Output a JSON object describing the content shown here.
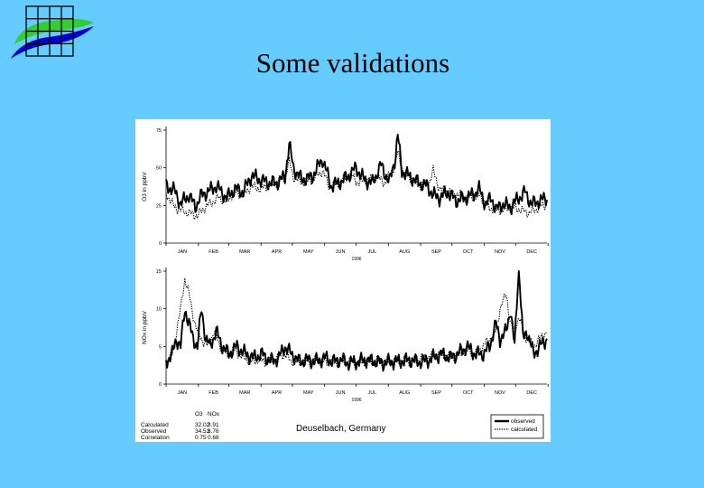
{
  "slide": {
    "title": "Some validations"
  },
  "colors": {
    "background": "#66ccff",
    "logo_green": "#33cc33",
    "logo_blue": "#0000cc",
    "grid": "#000000"
  },
  "chart_data": [
    {
      "type": "line",
      "ylabel": "O3 in ppbV",
      "xlabel": "1996",
      "ylim": [
        0,
        75
      ],
      "yticks": [
        0,
        25,
        50,
        75
      ],
      "x_ticks": [
        "JAN",
        "FEB",
        "MAR",
        "APR",
        "MAY",
        "JUN",
        "JUL",
        "AUG",
        "SEP",
        "OCT",
        "NOV",
        "DEC"
      ],
      "series": [
        {
          "name": "observed",
          "style": "solid-thick",
          "anchors": [
            [
              0,
              38
            ],
            [
              8,
              35
            ],
            [
              14,
              26
            ],
            [
              22,
              32
            ],
            [
              28,
              24
            ],
            [
              34,
              32
            ],
            [
              40,
              34
            ],
            [
              48,
              38
            ],
            [
              58,
              30
            ],
            [
              66,
              36
            ],
            [
              74,
              34
            ],
            [
              82,
              45
            ],
            [
              90,
              42
            ],
            [
              98,
              40
            ],
            [
              106,
              40
            ],
            [
              114,
              44
            ],
            [
              118,
              66
            ],
            [
              122,
              50
            ],
            [
              130,
              42
            ],
            [
              140,
              44
            ],
            [
              150,
              56
            ],
            [
              158,
              38
            ],
            [
              166,
              40
            ],
            [
              174,
              44
            ],
            [
              182,
              50
            ],
            [
              190,
              42
            ],
            [
              198,
              40
            ],
            [
              206,
              52
            ],
            [
              214,
              40
            ],
            [
              220,
              58
            ],
            [
              222,
              72
            ],
            [
              226,
              48
            ],
            [
              234,
              44
            ],
            [
              242,
              40
            ],
            [
              250,
              38
            ],
            [
              256,
              32
            ],
            [
              262,
              30
            ],
            [
              270,
              34
            ],
            [
              278,
              28
            ],
            [
              286,
              30
            ],
            [
              294,
              32
            ],
            [
              300,
              36
            ],
            [
              306,
              26
            ],
            [
              312,
              30
            ],
            [
              316,
              22
            ],
            [
              322,
              26
            ],
            [
              330,
              24
            ],
            [
              338,
              30
            ],
            [
              344,
              34
            ],
            [
              350,
              26
            ],
            [
              358,
              28
            ],
            [
              365,
              30
            ]
          ]
        },
        {
          "name": "calculated",
          "style": "dotted",
          "anchors": [
            [
              0,
              33
            ],
            [
              8,
              24
            ],
            [
              14,
              22
            ],
            [
              22,
              20
            ],
            [
              30,
              18
            ],
            [
              36,
              23
            ],
            [
              42,
              26
            ],
            [
              50,
              30
            ],
            [
              58,
              28
            ],
            [
              66,
              34
            ],
            [
              74,
              32
            ],
            [
              82,
              38
            ],
            [
              90,
              36
            ],
            [
              98,
              38
            ],
            [
              106,
              40
            ],
            [
              114,
              44
            ],
            [
              118,
              54
            ],
            [
              122,
              44
            ],
            [
              130,
              40
            ],
            [
              140,
              42
            ],
            [
              150,
              48
            ],
            [
              156,
              38
            ],
            [
              166,
              40
            ],
            [
              176,
              46
            ],
            [
              184,
              40
            ],
            [
              192,
              42
            ],
            [
              202,
              44
            ],
            [
              210,
              40
            ],
            [
              218,
              50
            ],
            [
              222,
              60
            ],
            [
              228,
              46
            ],
            [
              236,
              42
            ],
            [
              244,
              38
            ],
            [
              252,
              40
            ],
            [
              256,
              48
            ],
            [
              262,
              36
            ],
            [
              270,
              34
            ],
            [
              280,
              32
            ],
            [
              290,
              30
            ],
            [
              300,
              32
            ],
            [
              308,
              24
            ],
            [
              316,
              22
            ],
            [
              324,
              22
            ],
            [
              332,
              24
            ],
            [
              340,
              22
            ],
            [
              348,
              20
            ],
            [
              358,
              24
            ],
            [
              365,
              26
            ]
          ]
        }
      ]
    },
    {
      "type": "line",
      "ylabel": "NOx in ppbV",
      "xlabel": "1996",
      "ylim": [
        0,
        15
      ],
      "yticks": [
        0,
        5,
        10,
        15
      ],
      "x_ticks": [
        "JAN",
        "FEB",
        "MAR",
        "APR",
        "MAY",
        "JUN",
        "JUL",
        "AUG",
        "SEP",
        "OCT",
        "NOV",
        "DEC"
      ],
      "series": [
        {
          "name": "observed",
          "style": "solid-thick",
          "anchors": [
            [
              0,
              3
            ],
            [
              6,
              4
            ],
            [
              10,
              6
            ],
            [
              14,
              5
            ],
            [
              18,
              10
            ],
            [
              22,
              8
            ],
            [
              26,
              6
            ],
            [
              30,
              5
            ],
            [
              34,
              10
            ],
            [
              38,
              6
            ],
            [
              42,
              5
            ],
            [
              48,
              7
            ],
            [
              54,
              5
            ],
            [
              60,
              4
            ],
            [
              68,
              5
            ],
            [
              76,
              4
            ],
            [
              84,
              3.5
            ],
            [
              92,
              4
            ],
            [
              100,
              3
            ],
            [
              108,
              3.5
            ],
            [
              114,
              5
            ],
            [
              120,
              4
            ],
            [
              128,
              3
            ],
            [
              136,
              3.2
            ],
            [
              144,
              3
            ],
            [
              152,
              3.5
            ],
            [
              160,
              3
            ],
            [
              168,
              3.2
            ],
            [
              176,
              2.8
            ],
            [
              184,
              3
            ],
            [
              192,
              3.2
            ],
            [
              200,
              3
            ],
            [
              208,
              2.8
            ],
            [
              216,
              3
            ],
            [
              224,
              3
            ],
            [
              232,
              3.2
            ],
            [
              240,
              3
            ],
            [
              248,
              3
            ],
            [
              256,
              3.5
            ],
            [
              264,
              4
            ],
            [
              272,
              3.5
            ],
            [
              280,
              4
            ],
            [
              288,
              5
            ],
            [
              296,
              4
            ],
            [
              304,
              4
            ],
            [
              310,
              5
            ],
            [
              316,
              8
            ],
            [
              320,
              6
            ],
            [
              326,
              7
            ],
            [
              330,
              10
            ],
            [
              334,
              5
            ],
            [
              338,
              16
            ],
            [
              342,
              6
            ],
            [
              346,
              7
            ],
            [
              352,
              4
            ],
            [
              358,
              5
            ],
            [
              365,
              6
            ]
          ]
        },
        {
          "name": "calculated",
          "style": "dotted",
          "anchors": [
            [
              0,
              3
            ],
            [
              6,
              4
            ],
            [
              10,
              7
            ],
            [
              14,
              10
            ],
            [
              18,
              14
            ],
            [
              22,
              12
            ],
            [
              26,
              9
            ],
            [
              30,
              7
            ],
            [
              34,
              6
            ],
            [
              40,
              5
            ],
            [
              46,
              7
            ],
            [
              52,
              5
            ],
            [
              58,
              4
            ],
            [
              66,
              4.5
            ],
            [
              74,
              3.5
            ],
            [
              82,
              3
            ],
            [
              90,
              3.2
            ],
            [
              98,
              3
            ],
            [
              106,
              3.5
            ],
            [
              114,
              4
            ],
            [
              120,
              3
            ],
            [
              128,
              3
            ],
            [
              136,
              3
            ],
            [
              144,
              3.2
            ],
            [
              152,
              3
            ],
            [
              160,
              2.8
            ],
            [
              168,
              3
            ],
            [
              176,
              3
            ],
            [
              184,
              2.8
            ],
            [
              192,
              3
            ],
            [
              200,
              3
            ],
            [
              208,
              3
            ],
            [
              216,
              3
            ],
            [
              224,
              3.2
            ],
            [
              232,
              3
            ],
            [
              240,
              3.2
            ],
            [
              248,
              3.5
            ],
            [
              256,
              3.8
            ],
            [
              264,
              4
            ],
            [
              272,
              3.5
            ],
            [
              280,
              4
            ],
            [
              288,
              4.5
            ],
            [
              296,
              4
            ],
            [
              304,
              5
            ],
            [
              310,
              6
            ],
            [
              316,
              7
            ],
            [
              320,
              10
            ],
            [
              326,
              12
            ],
            [
              330,
              8
            ],
            [
              334,
              7
            ],
            [
              338,
              9
            ],
            [
              342,
              7
            ],
            [
              346,
              6
            ],
            [
              352,
              5
            ],
            [
              358,
              6
            ],
            [
              365,
              7
            ]
          ]
        }
      ]
    }
  ],
  "summary_table": {
    "col_o3": "O3",
    "col_nox": "NOx",
    "rows": [
      {
        "label": "Calculated",
        "o3": "32.02",
        "nox": "3.91"
      },
      {
        "label": "Observed",
        "o3": "34.53",
        "nox": "3.76"
      },
      {
        "label": "Correlation",
        "o3": "0.75",
        "nox": "0.68"
      }
    ]
  },
  "location": "Deuselbach, Germany",
  "legend": {
    "observed": "observed",
    "calculated": "calculated"
  }
}
